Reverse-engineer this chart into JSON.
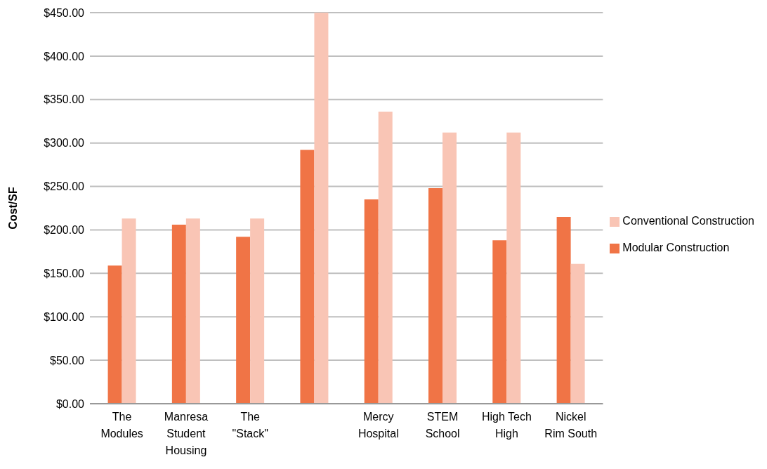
{
  "chart_data": {
    "type": "bar",
    "ylabel": "Cost/SF",
    "categories": [
      "The Modules",
      "Manresa Student Housing",
      "The \"Stack\"",
      null,
      "Mercy Hospital",
      "STEM School",
      "High Tech High",
      "Nickel Rim South"
    ],
    "series": [
      {
        "name": "Modular Construction",
        "color": "#f07446",
        "values": [
          159,
          206,
          192,
          292,
          235,
          248,
          188,
          215
        ]
      },
      {
        "name": "Conventional Construction",
        "color": "#f9c5b5",
        "values": [
          213,
          213,
          213,
          450,
          336,
          312,
          312,
          161
        ]
      }
    ],
    "ylim": [
      0,
      450
    ],
    "yticks": [
      {
        "value": 0,
        "label": "$0.00"
      },
      {
        "value": 50,
        "label": "$50.00"
      },
      {
        "value": 100,
        "label": "$100.00"
      },
      {
        "value": 150,
        "label": "$150.00"
      },
      {
        "value": 200,
        "label": "$200.00"
      },
      {
        "value": 250,
        "label": "$250.00"
      },
      {
        "value": 300,
        "label": "$300.00"
      },
      {
        "value": 350,
        "label": "$350.00"
      },
      {
        "value": 400,
        "label": "$400.00"
      },
      {
        "value": 450,
        "label": "$450.00"
      }
    ],
    "grid": "y",
    "legend": "right"
  }
}
